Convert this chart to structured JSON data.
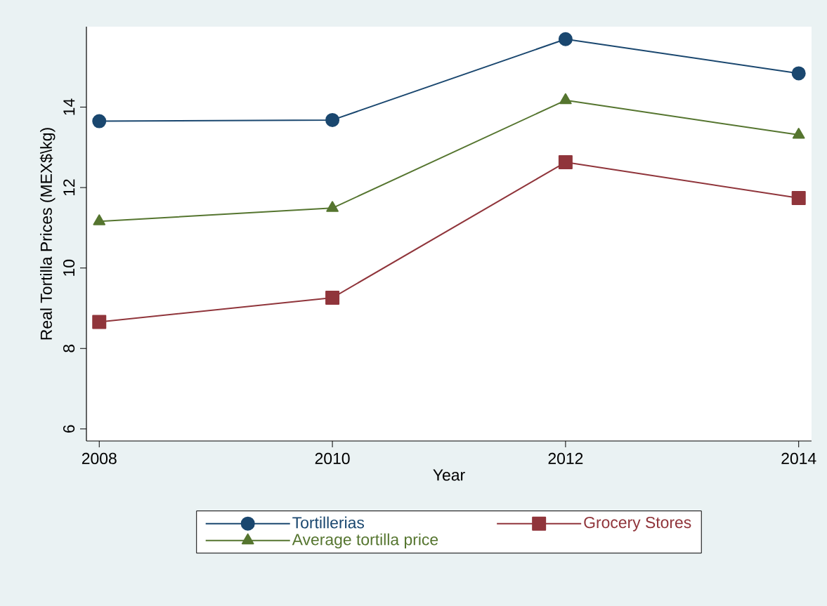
{
  "chart_data": {
    "type": "line",
    "xlabel": "Year",
    "ylabel": "Real Tortilla Prices (MEX$\\kg)",
    "x": [
      2008,
      2010,
      2012,
      2014
    ],
    "series": [
      {
        "name": "Tortillerias",
        "color": "#1a476f",
        "marker": "circle",
        "values": [
          13.65,
          13.68,
          15.69,
          14.84
        ]
      },
      {
        "name": "Grocery Stores",
        "color": "#90353b",
        "marker": "square",
        "values": [
          8.66,
          9.26,
          12.63,
          11.74
        ]
      },
      {
        "name": "Average tortilla price",
        "color": "#55752f",
        "marker": "triangle",
        "values": [
          11.16,
          11.49,
          14.17,
          13.31
        ]
      }
    ],
    "xlim": [
      2007.89,
      2014.11
    ],
    "ylim": [
      5.7,
      16.0
    ],
    "xticks": [
      2008,
      2010,
      2012,
      2014
    ],
    "yticks": [
      6,
      8,
      10,
      12,
      14
    ],
    "grid": false,
    "legend": "bottom",
    "line_style": "solid"
  }
}
